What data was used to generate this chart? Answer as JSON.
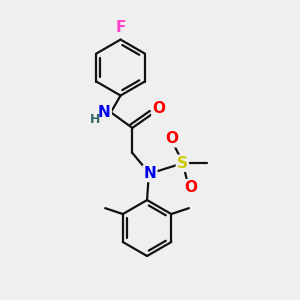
{
  "bg_color": "#efefef",
  "atom_colors": {
    "F": "#ff44cc",
    "N": "#0000ee",
    "O": "#ff0000",
    "S": "#cccc00",
    "C": "#000000",
    "H": "#336666"
  },
  "bond_color": "#111111",
  "bond_width": 1.6,
  "font_size_atom": 11,
  "font_size_h": 9,
  "figsize": [
    3.0,
    3.0
  ],
  "dpi": 100,
  "xlim": [
    0,
    10
  ],
  "ylim": [
    0,
    10
  ]
}
